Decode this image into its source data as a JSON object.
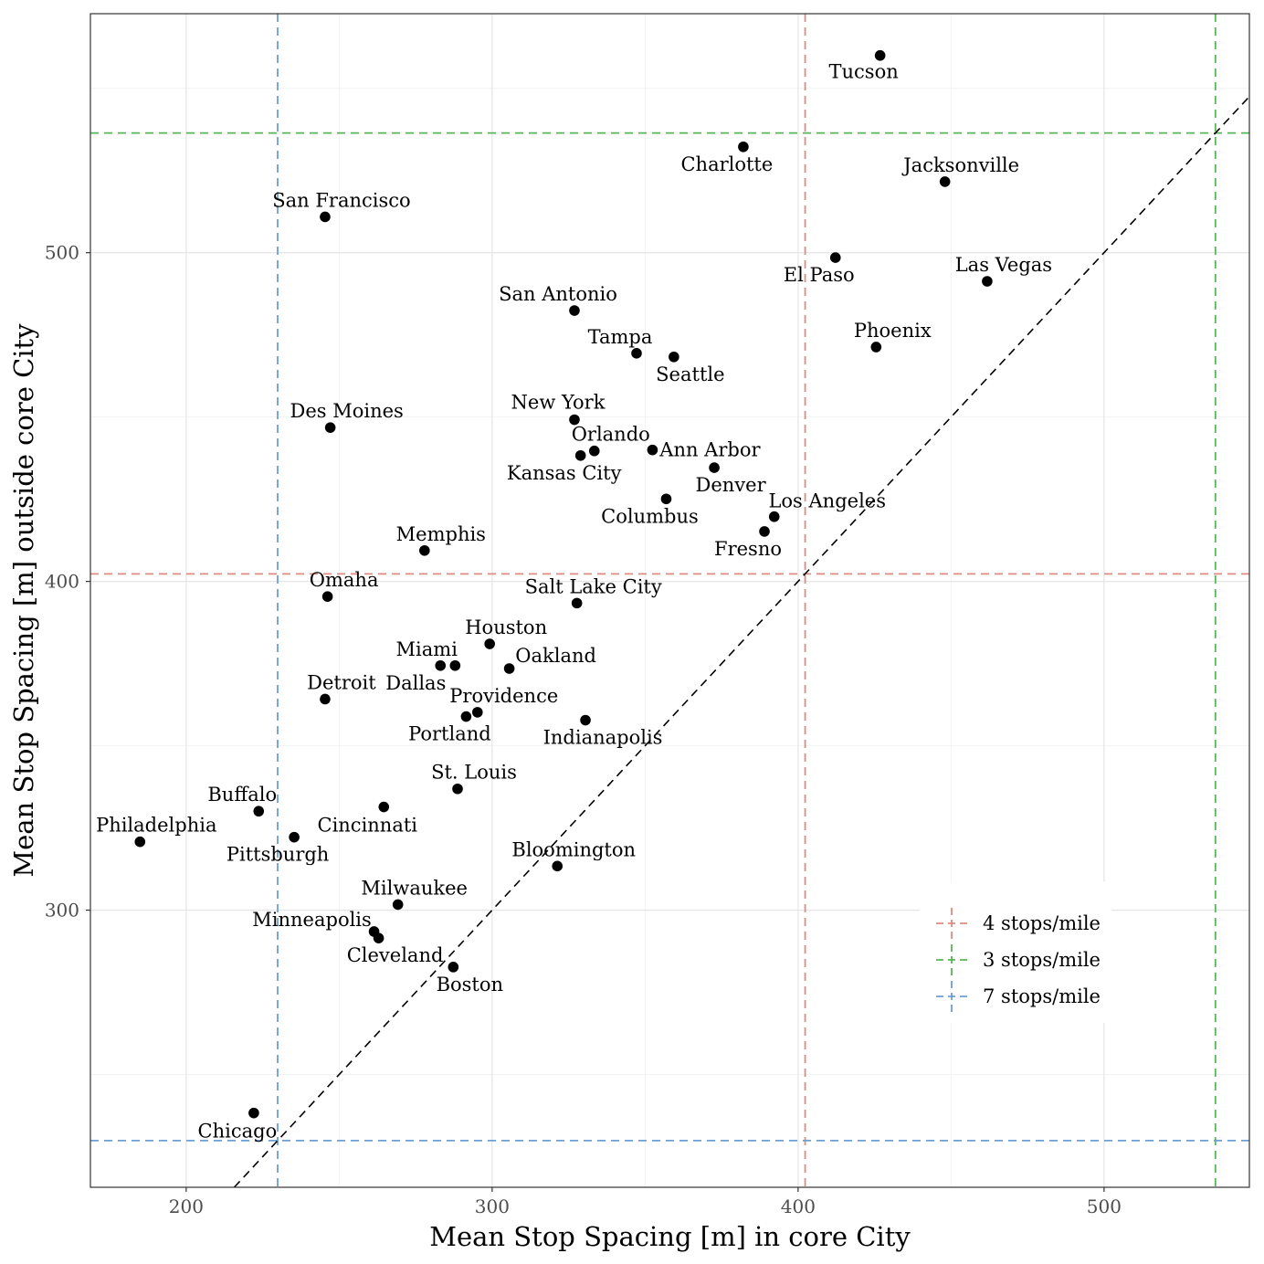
{
  "chart_data": {
    "type": "scatter",
    "xlabel": "Mean Stop Spacing [m] in core City",
    "ylabel": "Mean Stop Spacing [m] outside core City",
    "xlim": [
      168.7,
      547.5
    ],
    "ylim": [
      215.7,
      572.7
    ],
    "x_ticks": [
      200,
      300,
      400,
      500
    ],
    "y_ticks": [
      300,
      400,
      500
    ],
    "grid": true,
    "legend_position": "bottom-right",
    "reference_lines": [
      {
        "name": "4 stops/mile",
        "color": "#e08b80",
        "value": 402.3
      },
      {
        "name": "3 stops/mile",
        "color": "#58b458",
        "value": 536.4
      },
      {
        "name": "7 stops/mile",
        "color": "#6b9fd6",
        "value": 229.9
      }
    ],
    "diagonal": {
      "label": "",
      "color": "#000000"
    },
    "points": [
      {
        "label": "Tucson",
        "x": 426.8,
        "y": 560.0
      },
      {
        "label": "Charlotte",
        "x": 382.1,
        "y": 532.2
      },
      {
        "label": "Jacksonville",
        "x": 448.0,
        "y": 521.6
      },
      {
        "label": "San Francisco",
        "x": 245.4,
        "y": 510.9
      },
      {
        "label": "El Paso",
        "x": 412.2,
        "y": 498.5
      },
      {
        "label": "Las Vegas",
        "x": 461.8,
        "y": 491.3
      },
      {
        "label": "San Antonio",
        "x": 326.9,
        "y": 482.4
      },
      {
        "label": "Phoenix",
        "x": 425.5,
        "y": 471.3
      },
      {
        "label": "Tampa",
        "x": 347.2,
        "y": 469.4
      },
      {
        "label": "Seattle",
        "x": 359.4,
        "y": 468.3
      },
      {
        "label": "New York",
        "x": 326.9,
        "y": 449.2
      },
      {
        "label": "Des Moines",
        "x": 247.1,
        "y": 446.8
      },
      {
        "label": "Orlando",
        "x": 333.4,
        "y": 439.7
      },
      {
        "label": "Ann Arbor",
        "x": 352.4,
        "y": 440.0
      },
      {
        "label": "Kansas City",
        "x": 328.9,
        "y": 438.3
      },
      {
        "label": "Denver",
        "x": 372.6,
        "y": 434.6
      },
      {
        "label": "Columbus",
        "x": 356.9,
        "y": 425.1
      },
      {
        "label": "Los Angeles",
        "x": 392.2,
        "y": 419.7
      },
      {
        "label": "Fresno",
        "x": 389.0,
        "y": 415.2
      },
      {
        "label": "Memphis",
        "x": 277.9,
        "y": 409.4
      },
      {
        "label": "Omaha",
        "x": 246.2,
        "y": 395.4
      },
      {
        "label": "Salt Lake City",
        "x": 327.7,
        "y": 393.4
      },
      {
        "label": "Houston",
        "x": 299.2,
        "y": 381.0
      },
      {
        "label": "Miami",
        "x": 283.1,
        "y": 374.4
      },
      {
        "label": "Dallas",
        "x": 287.9,
        "y": 374.4
      },
      {
        "label": "Oakland",
        "x": 305.6,
        "y": 373.5
      },
      {
        "label": "Detroit",
        "x": 245.4,
        "y": 364.2
      },
      {
        "label": "Providence",
        "x": 295.2,
        "y": 360.2
      },
      {
        "label": "Portland",
        "x": 291.5,
        "y": 358.9
      },
      {
        "label": "Indianapolis",
        "x": 330.5,
        "y": 357.8
      },
      {
        "label": "St. Louis",
        "x": 288.7,
        "y": 336.9
      },
      {
        "label": "Cincinnati",
        "x": 264.6,
        "y": 331.4
      },
      {
        "label": "Buffalo",
        "x": 223.7,
        "y": 330.1
      },
      {
        "label": "Pittsburgh",
        "x": 235.3,
        "y": 322.2
      },
      {
        "label": "Philadelphia",
        "x": 184.9,
        "y": 320.8
      },
      {
        "label": "Bloomington",
        "x": 321.3,
        "y": 313.4
      },
      {
        "label": "Milwaukee",
        "x": 269.2,
        "y": 301.7
      },
      {
        "label": "Minneapolis",
        "x": 261.4,
        "y": 293.5
      },
      {
        "label": "Cleveland",
        "x": 262.9,
        "y": 291.5
      },
      {
        "label": "Boston",
        "x": 287.3,
        "y": 282.7
      },
      {
        "label": "Chicago",
        "x": 222.1,
        "y": 238.3
      }
    ]
  }
}
